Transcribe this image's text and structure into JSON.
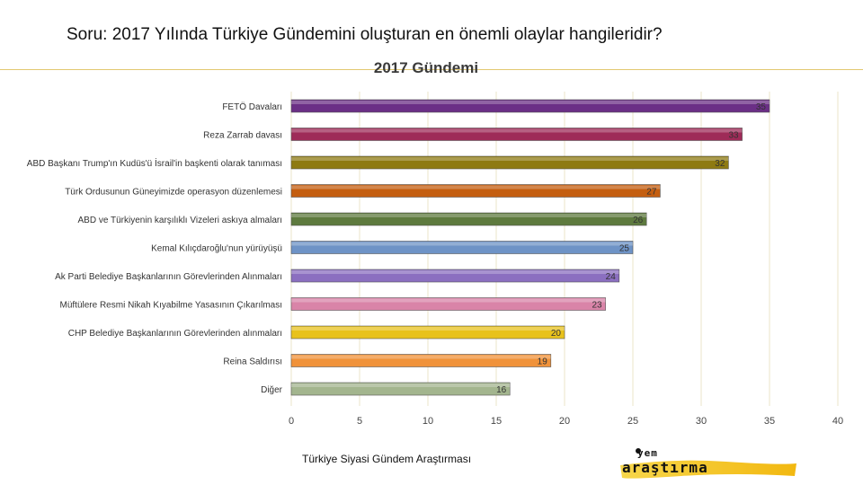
{
  "header": {
    "question": "Soru: 2017 Yılında Türkiye Gündemini oluşturan en önemli olaylar hangileridir?"
  },
  "footer": {
    "text": "Türkiye Siyasi Gündem Araştırması"
  },
  "logo": {
    "line1": "yem",
    "line2": "araştırma",
    "accent_color": "#f2c418"
  },
  "chart_data": {
    "type": "bar",
    "orientation": "horizontal",
    "title": "2017 Gündemi",
    "categories": [
      "FETÖ Davaları",
      "Reza Zarrab davası",
      "ABD Başkanı Trump'ın Kudüs'ü İsrail'in başkenti olarak tanıması",
      "Türk Ordusunun Güneyimizde operasyon düzenlemesi",
      "ABD ve Türkiyenin karşılıklı Vizeleri askıya almaları",
      "Kemal Kılıçdaroğlu'nun yürüyüşü",
      "Ak Parti Belediye Başkanlarının Görevlerinden Alınmaları",
      "Müftülere Resmi Nikah Kıyabilme Yasasının Çıkarılması",
      "CHP Belediye Başkanlarının Görevlerinden alınmaları",
      "Reina Saldırısı",
      "Diğer"
    ],
    "values": [
      35,
      33,
      32,
      27,
      26,
      25,
      24,
      23,
      20,
      19,
      16
    ],
    "colors": [
      "#6b2f86",
      "#9e2b58",
      "#8e7a12",
      "#c45e10",
      "#5e7a3e",
      "#6e93c6",
      "#8b6fc0",
      "#d984a8",
      "#e8c21c",
      "#f0923a",
      "#a3b58e"
    ],
    "xlim": [
      0,
      40
    ],
    "xticks": [
      0,
      5,
      10,
      15,
      20,
      25,
      30,
      35,
      40
    ],
    "grid": true,
    "legend": "none"
  }
}
